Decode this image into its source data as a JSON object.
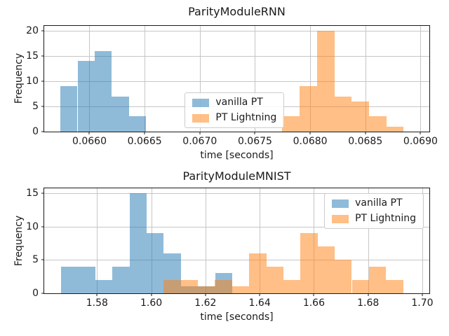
{
  "figure": {
    "background": "#ffffff",
    "grid_color": "#c6c6c6",
    "spine_color": "#1a1a1a"
  },
  "chart_data": [
    {
      "type": "histogram",
      "title": "ParityModuleRNN",
      "xlabel": "time [seconds]",
      "ylabel": "Frequency",
      "xlim": [
        0.06559,
        0.06908
      ],
      "ylim": [
        0,
        21
      ],
      "grid": true,
      "legend_loc": "center",
      "xticks": [
        0.066,
        0.0665,
        0.067,
        0.0675,
        0.068,
        0.0685,
        0.069
      ],
      "xtick_labels": [
        "0.0660",
        "0.0665",
        "0.0670",
        "0.0675",
        "0.0680",
        "0.0685",
        "0.0690"
      ],
      "yticks": [
        0,
        5,
        10,
        15,
        20
      ],
      "ytick_labels": [
        "0",
        "5",
        "10",
        "15",
        "20"
      ],
      "series": [
        {
          "name": "vanilla PT",
          "color": "#1f77b4",
          "alpha": 0.5,
          "bin_edges": [
            0.065737,
            0.065892,
            0.066048,
            0.066203,
            0.066359,
            0.066514
          ],
          "counts": [
            9,
            14,
            16,
            7,
            3
          ]
        },
        {
          "name": "PT Lightning",
          "color": "#ff7f0e",
          "alpha": 0.5,
          "bin_edges": [
            0.067747,
            0.067904,
            0.068062,
            0.068219,
            0.068376,
            0.068533,
            0.068691,
            0.068848
          ],
          "counts": [
            3,
            9,
            20,
            7,
            6,
            3,
            1
          ]
        }
      ]
    },
    {
      "type": "histogram",
      "title": "ParityModuleMNIST",
      "xlabel": "time [seconds]",
      "ylabel": "Frequency",
      "xlim": [
        1.5605,
        1.7026
      ],
      "ylim": [
        0,
        15.75
      ],
      "grid": true,
      "legend_loc": "upper-right",
      "xticks": [
        1.58,
        1.6,
        1.62,
        1.64,
        1.66,
        1.68,
        1.7
      ],
      "xtick_labels": [
        "1.58",
        "1.60",
        "1.62",
        "1.64",
        "1.66",
        "1.68",
        "1.70"
      ],
      "yticks": [
        0,
        5,
        10,
        15
      ],
      "ytick_labels": [
        "0",
        "5",
        "10",
        "15"
      ],
      "series": [
        {
          "name": "vanilla PT",
          "color": "#1f77b4",
          "alpha": 0.5,
          "bin_edges": [
            1.5667,
            1.573,
            1.5793,
            1.5857,
            1.592,
            1.5983,
            1.6046,
            1.611,
            1.6173,
            1.6236,
            1.6299
          ],
          "counts": [
            4,
            4,
            2,
            4,
            15,
            9,
            6,
            1,
            1,
            3
          ]
        },
        {
          "name": "PT Lightning",
          "color": "#ff7f0e",
          "alpha": 0.5,
          "bin_edges": [
            1.6046,
            1.6109,
            1.6172,
            1.6235,
            1.6298,
            1.6361,
            1.6425,
            1.6488,
            1.6551,
            1.6614,
            1.6677,
            1.674,
            1.6803,
            1.6866,
            1.6929
          ],
          "counts": [
            2,
            2,
            1,
            2,
            1,
            6,
            4,
            2,
            9,
            7,
            5,
            2,
            4,
            2
          ]
        }
      ]
    }
  ]
}
